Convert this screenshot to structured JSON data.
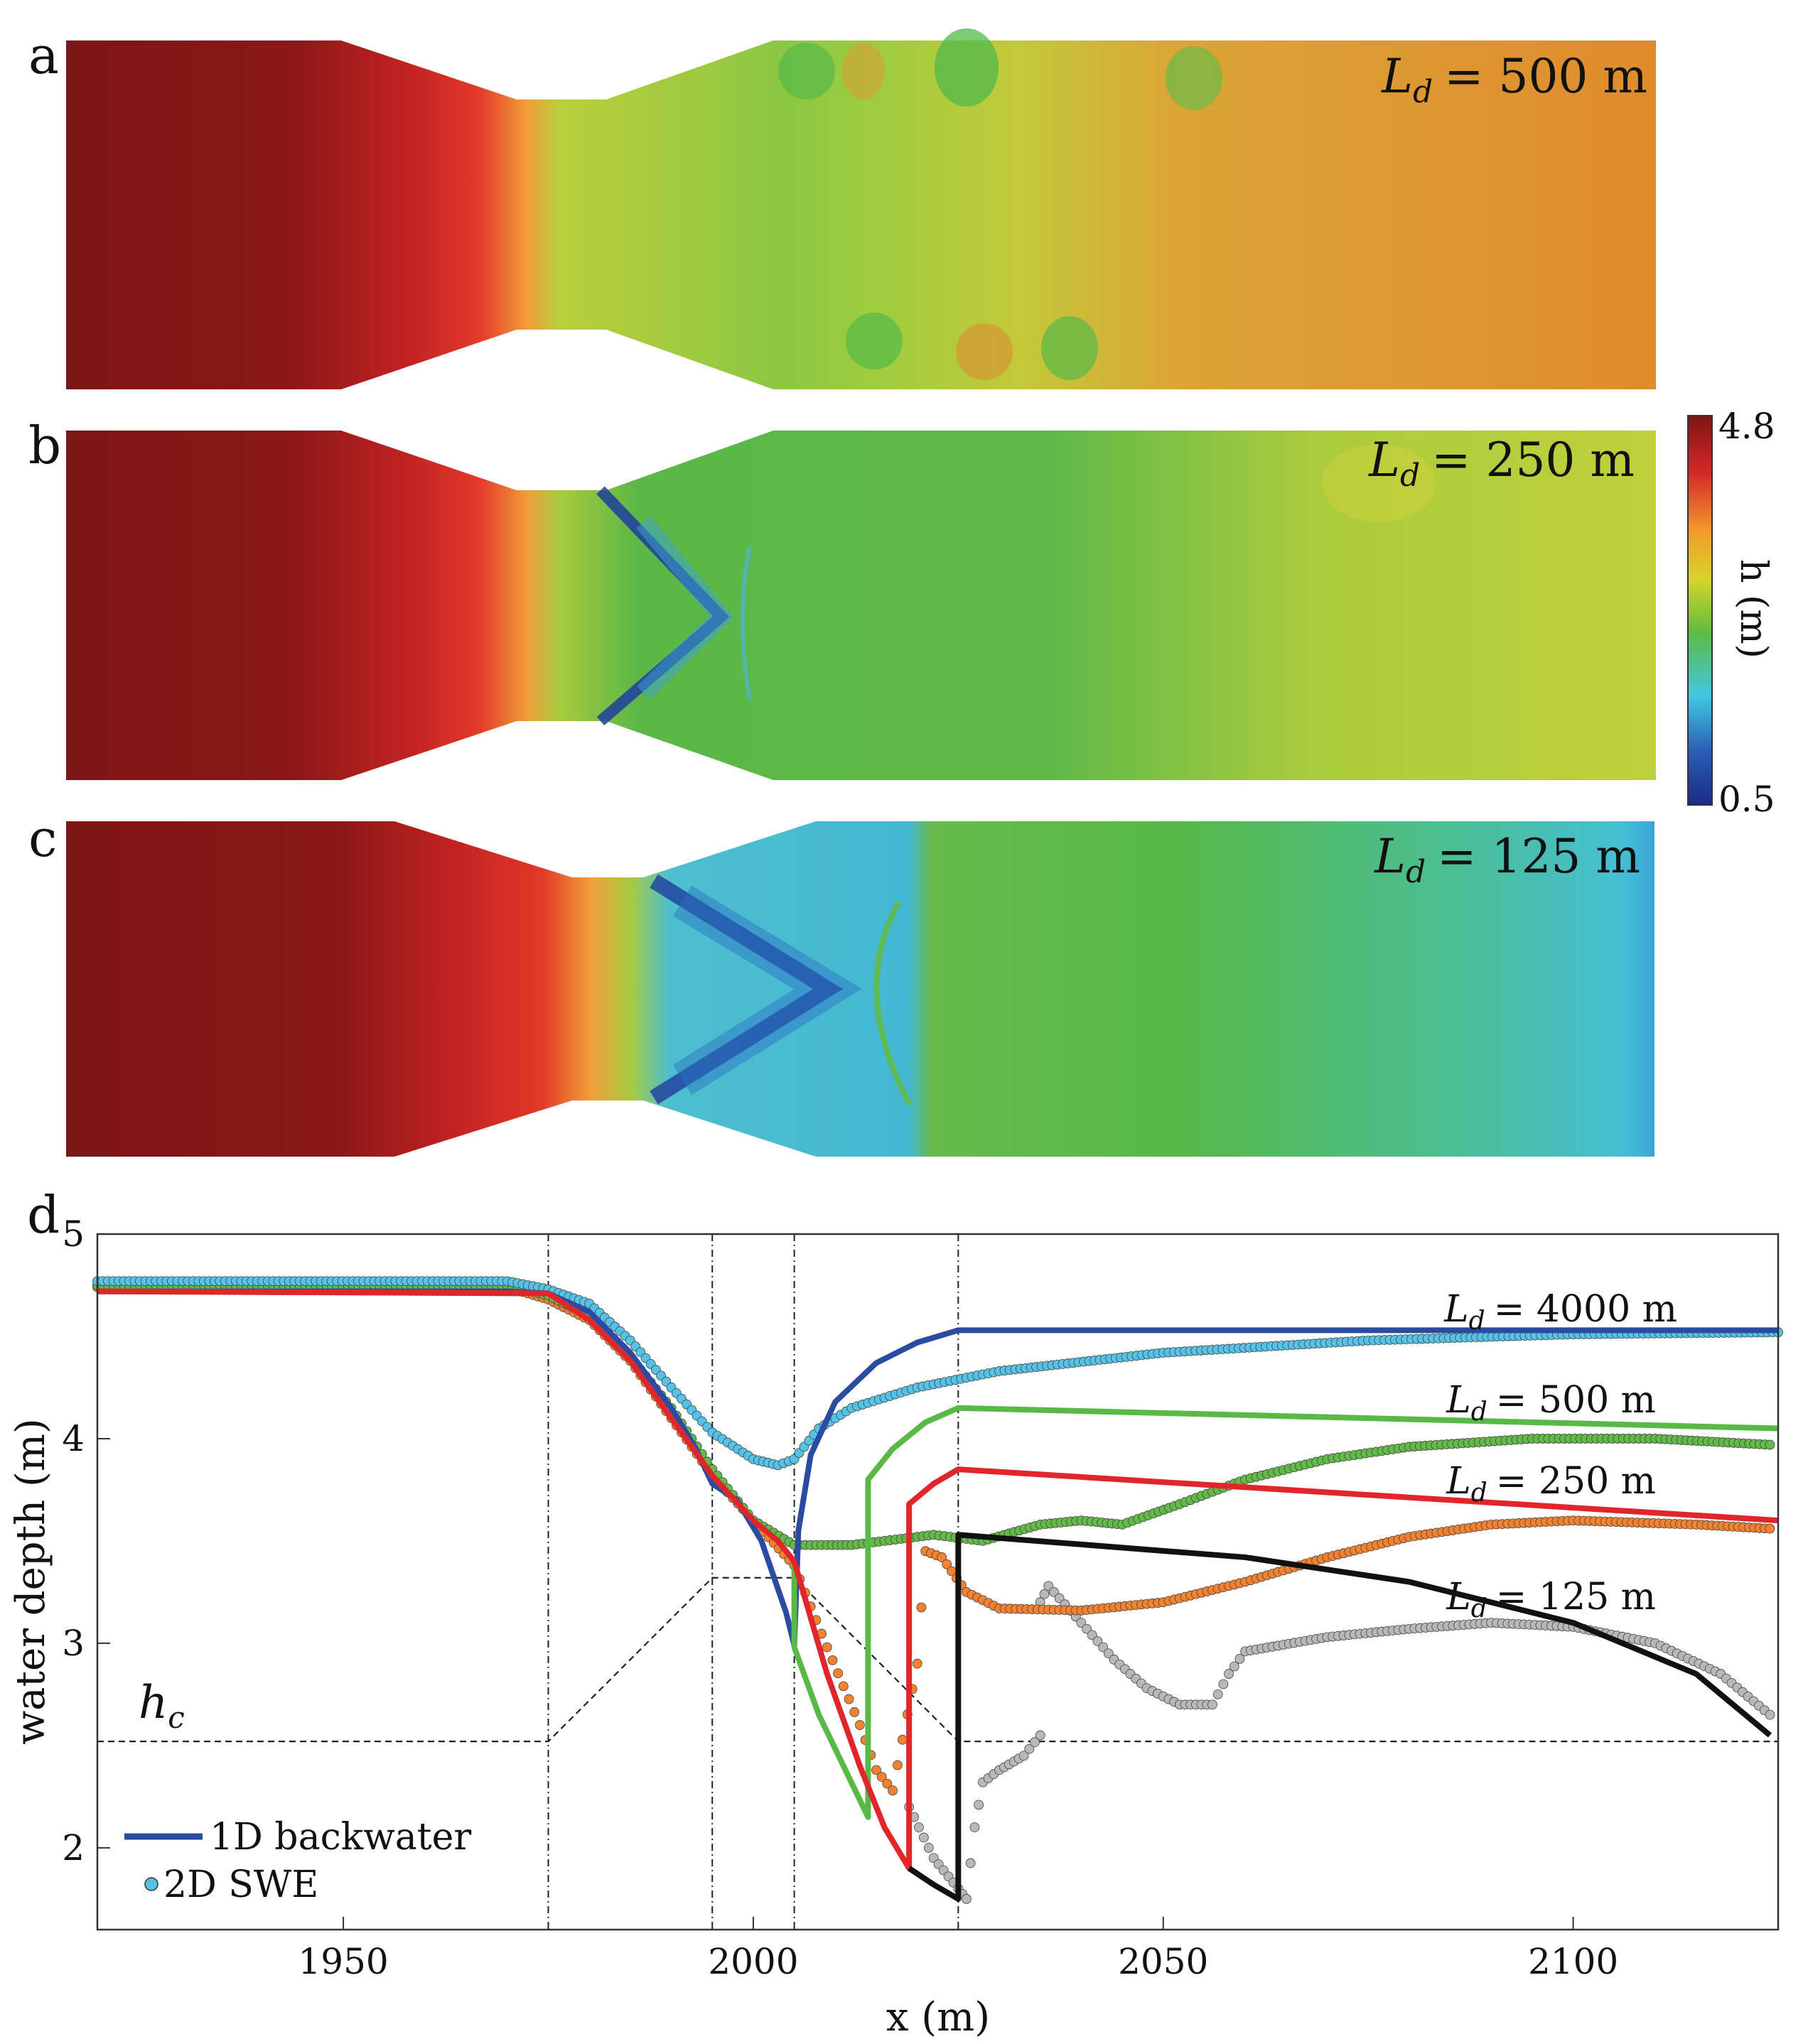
{
  "panels": [
    {
      "letter": "a",
      "label": "L",
      "sub": "d",
      "value": "= 500 m"
    },
    {
      "letter": "b",
      "label": "L",
      "sub": "d",
      "value": "= 250 m"
    },
    {
      "letter": "c",
      "label": "L",
      "sub": "d",
      "value": "= 125 m"
    }
  ],
  "colorbar": {
    "max_label": "4.8",
    "min_label": "0.5",
    "title": "h (m)",
    "min": 0.5,
    "max": 4.8,
    "colors": [
      "#7f1414",
      "#d42a2a",
      "#f39c2c",
      "#d6d52b",
      "#5dbb44",
      "#43c7e2",
      "#2a5fb5",
      "#1c2a85"
    ]
  },
  "chart_data": {
    "type": "line",
    "panel_letter": "d",
    "xlabel": "x (m)",
    "ylabel": "water depth (m)",
    "xlim": [
      1920,
      2125
    ],
    "ylim": [
      1.6,
      5.0
    ],
    "xticks": [
      1950,
      2000,
      2050,
      2100
    ],
    "yticks": [
      2,
      3,
      4,
      5
    ],
    "hc_label": "h",
    "hc_sub": "c",
    "hc": 2.52,
    "vlines": [
      1975,
      1995,
      2005,
      2025
    ],
    "legend": [
      {
        "name": "1D backwater",
        "kind": "line",
        "color": "#2b4ba3"
      },
      {
        "name": "2D SWE",
        "kind": "marker",
        "color": "#55c2e6"
      }
    ],
    "annotations": [
      {
        "label": "L",
        "sub": "d",
        "value": "= 4000 m",
        "x": 2108,
        "y": 4.65
      },
      {
        "label": "L",
        "sub": "d",
        "value": "= 500 m",
        "x": 2108,
        "y": 4.2
      },
      {
        "label": "L",
        "sub": "d",
        "value": "= 250 m",
        "x": 2108,
        "y": 3.8
      },
      {
        "label": "L",
        "sub": "d",
        "value": "= 125 m",
        "x": 2108,
        "y": 3.22
      }
    ],
    "bed_profile": [
      [
        1920,
        2.52
      ],
      [
        1975,
        2.52
      ],
      [
        1995,
        3.32
      ],
      [
        2005,
        3.32
      ],
      [
        2025,
        2.52
      ],
      [
        2125,
        2.52
      ]
    ],
    "series_1d": [
      {
        "name": "Ld = 4000 m",
        "color": "#2b4ba3",
        "points": [
          [
            1920,
            4.72
          ],
          [
            1970,
            4.72
          ],
          [
            1975,
            4.71
          ],
          [
            1980,
            4.62
          ],
          [
            1985,
            4.42
          ],
          [
            1990,
            4.15
          ],
          [
            1993,
            3.95
          ],
          [
            1995,
            3.78
          ],
          [
            1998,
            3.7
          ],
          [
            2001,
            3.5
          ],
          [
            2004,
            3.15
          ],
          [
            2005,
            2.99
          ],
          [
            2005.5,
            3.55
          ],
          [
            2007,
            3.92
          ],
          [
            2010,
            4.18
          ],
          [
            2015,
            4.37
          ],
          [
            2020,
            4.47
          ],
          [
            2025,
            4.53
          ],
          [
            2125,
            4.53
          ]
        ]
      },
      {
        "name": "Ld = 500 m",
        "color": "#59b947",
        "points": [
          [
            1920,
            4.72
          ],
          [
            1975,
            4.71
          ],
          [
            1980,
            4.58
          ],
          [
            1985,
            4.38
          ],
          [
            1990,
            4.1
          ],
          [
            1995,
            3.82
          ],
          [
            2000,
            3.6
          ],
          [
            2003,
            3.5
          ],
          [
            2005,
            3.4
          ],
          [
            2005,
            2.98
          ],
          [
            2008,
            2.65
          ],
          [
            2011,
            2.4
          ],
          [
            2014,
            2.15
          ],
          [
            2014,
            3.8
          ],
          [
            2017,
            3.95
          ],
          [
            2021,
            4.08
          ],
          [
            2025,
            4.15
          ],
          [
            2125,
            4.05
          ]
        ]
      },
      {
        "name": "Ld = 250 m",
        "color": "#e0262a",
        "points": [
          [
            1920,
            4.72
          ],
          [
            1975,
            4.71
          ],
          [
            1980,
            4.58
          ],
          [
            1985,
            4.38
          ],
          [
            1990,
            4.1
          ],
          [
            1995,
            3.82
          ],
          [
            2000,
            3.6
          ],
          [
            2003,
            3.5
          ],
          [
            2005,
            3.4
          ],
          [
            2009,
            2.85
          ],
          [
            2013,
            2.4
          ],
          [
            2016,
            2.1
          ],
          [
            2019,
            1.9
          ],
          [
            2019,
            3.68
          ],
          [
            2022,
            3.78
          ],
          [
            2025,
            3.85
          ],
          [
            2125,
            3.6
          ]
        ]
      },
      {
        "name": "Ld = 125 m",
        "color": "#111111",
        "points": [
          [
            2019,
            1.9
          ],
          [
            2022,
            1.82
          ],
          [
            2025,
            1.75
          ],
          [
            2025,
            3.53
          ],
          [
            2060,
            3.42
          ],
          [
            2080,
            3.3
          ],
          [
            2100,
            3.1
          ],
          [
            2115,
            2.85
          ],
          [
            2124,
            2.55
          ]
        ]
      }
    ],
    "series_2d": [
      {
        "name": "Ld = 4000 m",
        "color": "#55c2e6",
        "points": [
          [
            1920,
            4.77
          ],
          [
            1970,
            4.77
          ],
          [
            1975,
            4.73
          ],
          [
            1980,
            4.66
          ],
          [
            1985,
            4.48
          ],
          [
            1990,
            4.25
          ],
          [
            1995,
            4.03
          ],
          [
            2000,
            3.9
          ],
          [
            2003,
            3.87
          ],
          [
            2005,
            3.9
          ],
          [
            2008,
            4.05
          ],
          [
            2012,
            4.15
          ],
          [
            2020,
            4.25
          ],
          [
            2030,
            4.33
          ],
          [
            2050,
            4.42
          ],
          [
            2075,
            4.48
          ],
          [
            2100,
            4.51
          ],
          [
            2125,
            4.52
          ]
        ]
      },
      {
        "name": "Ld = 500 m",
        "color": "#62ba48",
        "points": [
          [
            1920,
            4.75
          ],
          [
            1970,
            4.75
          ],
          [
            1975,
            4.7
          ],
          [
            1980,
            4.6
          ],
          [
            1985,
            4.4
          ],
          [
            1990,
            4.15
          ],
          [
            1995,
            3.85
          ],
          [
            2000,
            3.6
          ],
          [
            2005,
            3.48
          ],
          [
            2009,
            3.48
          ],
          [
            2012,
            3.48
          ],
          [
            2016,
            3.5
          ],
          [
            2022,
            3.53
          ],
          [
            2028,
            3.5
          ],
          [
            2035,
            3.58
          ],
          [
            2040,
            3.6
          ],
          [
            2045,
            3.58
          ],
          [
            2052,
            3.68
          ],
          [
            2060,
            3.8
          ],
          [
            2070,
            3.9
          ],
          [
            2080,
            3.96
          ],
          [
            2095,
            4.0
          ],
          [
            2110,
            4.0
          ],
          [
            2124,
            3.97
          ]
        ]
      },
      {
        "name": "Ld = 250 m",
        "color": "#f28130",
        "points": [
          [
            1920,
            4.74
          ],
          [
            1970,
            4.74
          ],
          [
            1975,
            4.68
          ],
          [
            1980,
            4.58
          ],
          [
            1985,
            4.38
          ],
          [
            1990,
            4.1
          ],
          [
            1995,
            3.82
          ],
          [
            2000,
            3.6
          ],
          [
            2005,
            3.38
          ],
          [
            2009,
            2.98
          ],
          [
            2013,
            2.6
          ],
          [
            2015,
            2.38
          ],
          [
            2017,
            2.28
          ],
          [
            2020,
            2.9
          ],
          [
            2021,
            3.45
          ],
          [
            2023,
            3.42
          ],
          [
            2026,
            3.25
          ],
          [
            2030,
            3.17
          ],
          [
            2040,
            3.16
          ],
          [
            2050,
            3.2
          ],
          [
            2060,
            3.3
          ],
          [
            2070,
            3.42
          ],
          [
            2080,
            3.52
          ],
          [
            2090,
            3.58
          ],
          [
            2100,
            3.6
          ],
          [
            2115,
            3.58
          ],
          [
            2124,
            3.56
          ]
        ]
      },
      {
        "name": "Ld = 125 m",
        "color": "#b8b8b8",
        "points": [
          [
            2019,
            2.2
          ],
          [
            2022,
            1.95
          ],
          [
            2025,
            1.8
          ],
          [
            2026,
            1.75
          ],
          [
            2027,
            2.1
          ],
          [
            2028,
            2.32
          ],
          [
            2030,
            2.38
          ],
          [
            2033,
            2.45
          ],
          [
            2035,
            2.55
          ],
          [
            2035,
            3.2
          ],
          [
            2036,
            3.28
          ],
          [
            2040,
            3.1
          ],
          [
            2044,
            2.92
          ],
          [
            2048,
            2.78
          ],
          [
            2052,
            2.7
          ],
          [
            2056,
            2.7
          ],
          [
            2058,
            2.85
          ],
          [
            2060,
            2.96
          ],
          [
            2070,
            3.03
          ],
          [
            2080,
            3.07
          ],
          [
            2090,
            3.1
          ],
          [
            2100,
            3.08
          ],
          [
            2110,
            3.0
          ],
          [
            2118,
            2.85
          ],
          [
            2124,
            2.65
          ]
        ]
      }
    ]
  }
}
